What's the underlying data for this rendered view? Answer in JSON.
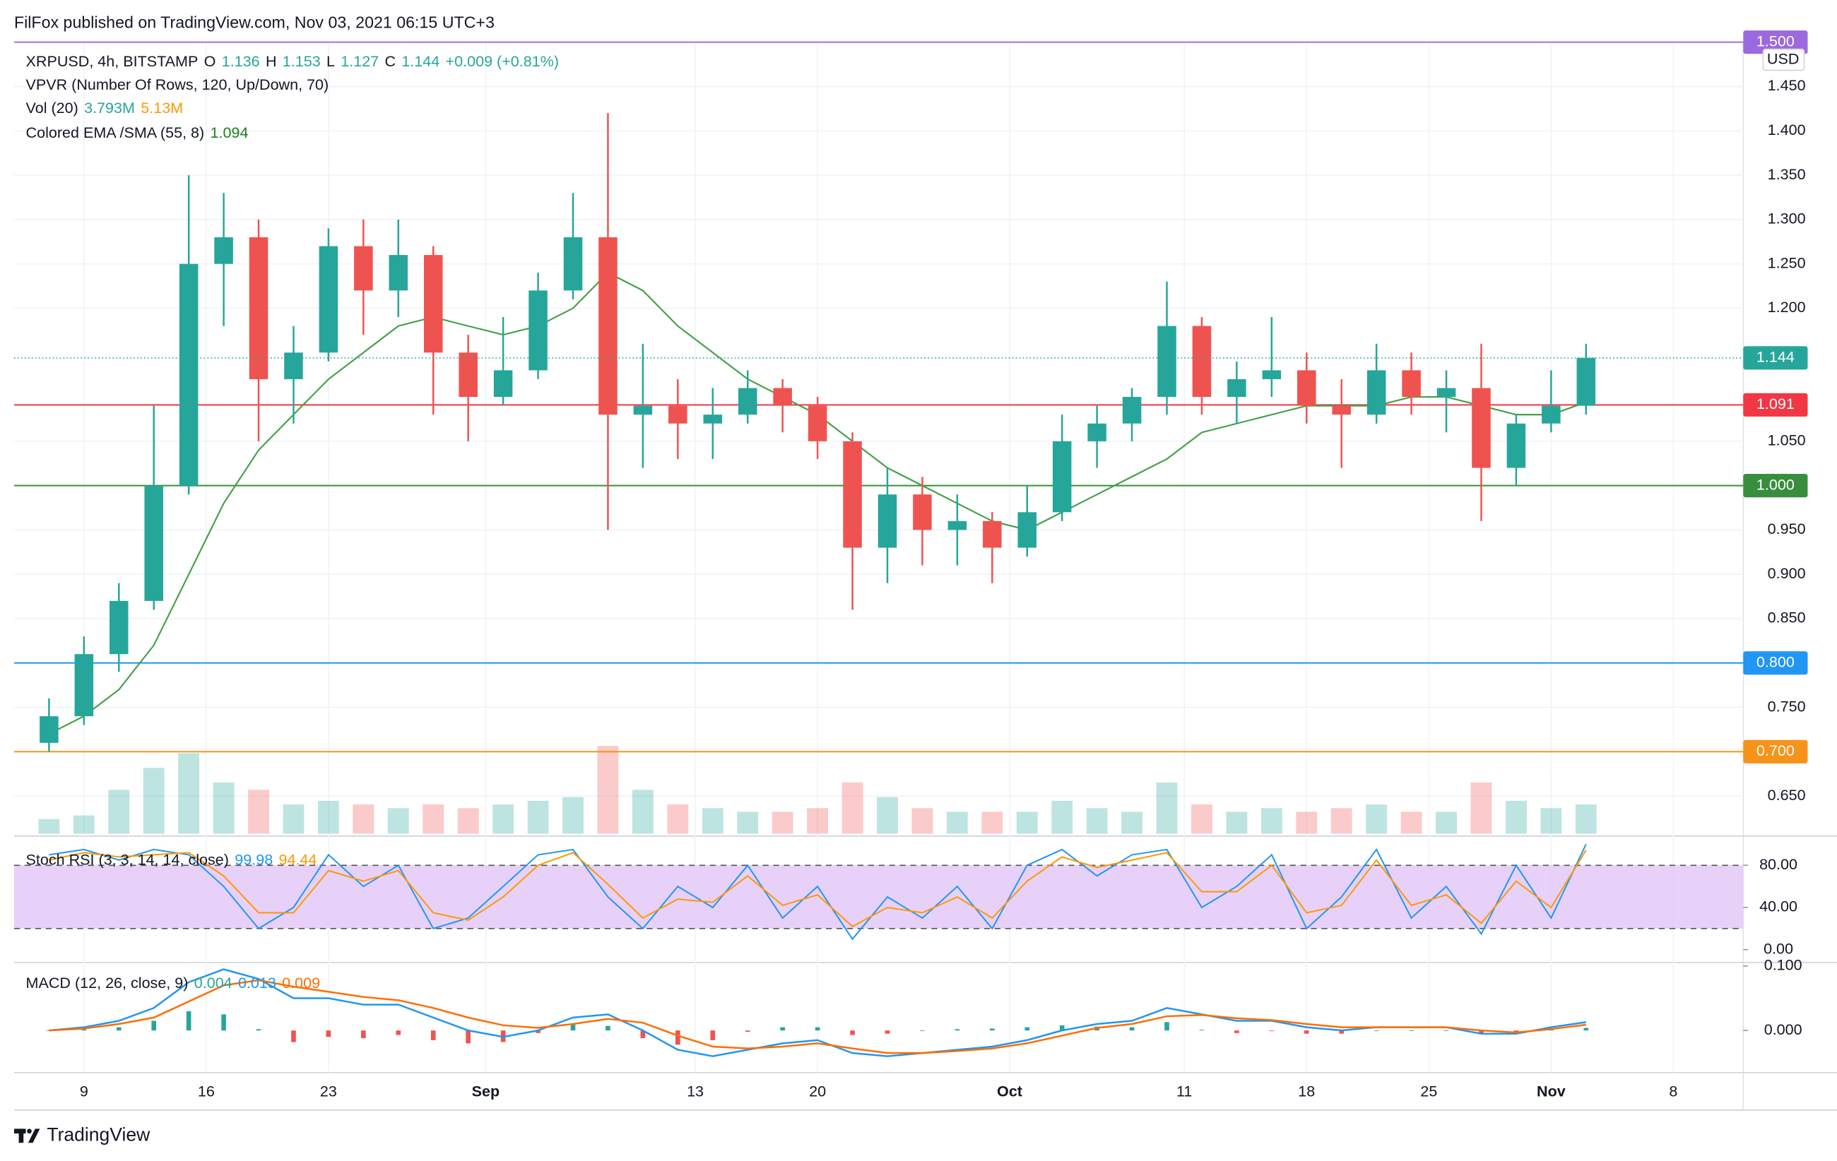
{
  "header": {
    "publisher": "FilFox published on TradingView.com, Nov 03, 2021 06:15 UTC+3",
    "brand": "TradingView"
  },
  "chart_data": {
    "type": "candlestick",
    "title": "XRPUSD, 4h, BITSTAMP",
    "ohlc_legend": [
      {
        "label": "O",
        "value": "1.136"
      },
      {
        "label": "H",
        "value": "1.153"
      },
      {
        "label": "L",
        "value": "1.127"
      }
    ],
    "close_label": "C",
    "change": "+0.009 (+0.81%)",
    "vpvr": "VPVR (Number Of Rows, 120, Up/Down, 70)",
    "currency": "USD",
    "up_color": "#26a69a",
    "down_color": "#ef5350",
    "x": [
      "2021-08-06",
      "2021-08-08",
      "2021-08-10",
      "2021-08-12",
      "2021-08-14",
      "2021-08-16",
      "2021-08-18",
      "2021-08-20",
      "2021-08-22",
      "2021-08-24",
      "2021-08-26",
      "2021-08-28",
      "2021-08-30",
      "2021-09-01",
      "2021-09-03",
      "2021-09-05",
      "2021-09-07",
      "2021-09-09",
      "2021-09-11",
      "2021-09-13",
      "2021-09-15",
      "2021-09-17",
      "2021-09-19",
      "2021-09-21",
      "2021-09-23",
      "2021-09-25",
      "2021-09-27",
      "2021-09-29",
      "2021-10-01",
      "2021-10-03",
      "2021-10-05",
      "2021-10-07",
      "2021-10-09",
      "2021-10-11",
      "2021-10-13",
      "2021-10-15",
      "2021-10-17",
      "2021-10-19",
      "2021-10-21",
      "2021-10-23",
      "2021-10-25",
      "2021-10-27",
      "2021-10-29",
      "2021-10-31",
      "2021-11-02"
    ],
    "open": [
      0.71,
      0.74,
      0.81,
      0.87,
      1.0,
      1.25,
      1.28,
      1.12,
      1.15,
      1.27,
      1.22,
      1.26,
      1.15,
      1.1,
      1.13,
      1.22,
      1.28,
      1.08,
      1.09,
      1.07,
      1.08,
      1.11,
      1.09,
      1.05,
      0.93,
      0.99,
      0.95,
      0.96,
      0.93,
      0.97,
      1.05,
      1.07,
      1.1,
      1.18,
      1.1,
      1.12,
      1.13,
      1.09,
      1.08,
      1.13,
      1.1,
      1.11,
      1.02,
      1.07,
      1.09
    ],
    "high": [
      0.76,
      0.83,
      0.89,
      1.09,
      1.35,
      1.33,
      1.3,
      1.18,
      1.29,
      1.3,
      1.3,
      1.27,
      1.17,
      1.19,
      1.24,
      1.33,
      1.42,
      1.16,
      1.12,
      1.11,
      1.13,
      1.12,
      1.1,
      1.06,
      1.02,
      1.01,
      0.99,
      0.97,
      1.0,
      1.08,
      1.09,
      1.11,
      1.23,
      1.19,
      1.14,
      1.19,
      1.15,
      1.12,
      1.16,
      1.15,
      1.13,
      1.16,
      1.08,
      1.13,
      1.16
    ],
    "low": [
      0.7,
      0.73,
      0.79,
      0.86,
      0.99,
      1.18,
      1.05,
      1.07,
      1.14,
      1.17,
      1.19,
      1.08,
      1.05,
      1.09,
      1.12,
      1.21,
      0.95,
      1.02,
      1.03,
      1.03,
      1.07,
      1.06,
      1.03,
      0.86,
      0.89,
      0.91,
      0.91,
      0.89,
      0.92,
      0.96,
      1.02,
      1.05,
      1.08,
      1.08,
      1.07,
      1.1,
      1.07,
      1.02,
      1.07,
      1.08,
      1.06,
      0.96,
      1.0,
      1.06,
      1.08
    ],
    "close": [
      0.74,
      0.81,
      0.87,
      1.0,
      1.25,
      1.28,
      1.12,
      1.15,
      1.27,
      1.22,
      1.26,
      1.15,
      1.1,
      1.13,
      1.22,
      1.28,
      1.08,
      1.09,
      1.07,
      1.08,
      1.11,
      1.09,
      1.05,
      0.93,
      0.99,
      0.95,
      0.96,
      0.93,
      0.97,
      1.05,
      1.07,
      1.1,
      1.18,
      1.1,
      1.12,
      1.13,
      1.09,
      1.08,
      1.13,
      1.1,
      1.11,
      1.02,
      1.07,
      1.09,
      1.144
    ],
    "xlim": [
      "2021-08-05",
      "2021-11-12"
    ],
    "xticks": [
      {
        "value": "2021-08-09",
        "label": "9"
      },
      {
        "value": "2021-08-16",
        "label": "16"
      },
      {
        "value": "2021-08-23",
        "label": "23"
      },
      {
        "value": "2021-09-01",
        "label": "Sep"
      },
      {
        "value": "2021-09-13",
        "label": "13"
      },
      {
        "value": "2021-09-20",
        "label": "20"
      },
      {
        "value": "2021-10-01",
        "label": "Oct"
      },
      {
        "value": "2021-10-11",
        "label": "11"
      },
      {
        "value": "2021-10-18",
        "label": "18"
      },
      {
        "value": "2021-10-25",
        "label": "25"
      },
      {
        "value": "2021-11-01",
        "label": "Nov"
      },
      {
        "value": "2021-11-08",
        "label": "8"
      }
    ],
    "ylim": [
      0.6075,
      1.5
    ],
    "yticks": [
      {
        "value": 0.65,
        "label": "0.650"
      },
      {
        "value": 0.75,
        "label": "0.750"
      },
      {
        "value": 0.85,
        "label": "0.850"
      },
      {
        "value": 0.9,
        "label": "0.900"
      },
      {
        "value": 0.95,
        "label": "0.950"
      },
      {
        "value": 1.05,
        "label": "1.050"
      },
      {
        "value": 1.2,
        "label": "1.200"
      },
      {
        "value": 1.25,
        "label": "1.250"
      },
      {
        "value": 1.3,
        "label": "1.300"
      },
      {
        "value": 1.35,
        "label": "1.350"
      },
      {
        "value": 1.4,
        "label": "1.400"
      },
      {
        "value": 1.45,
        "label": "1.450"
      }
    ],
    "grid": true,
    "levels": [
      {
        "value": 1.5,
        "label": "1.500",
        "color": "#9c6ade"
      },
      {
        "value": 1.091,
        "label": "1.091",
        "color": "#f23645"
      },
      {
        "value": 1.0,
        "label": "1.000",
        "color": "#388e3c"
      },
      {
        "value": 0.8,
        "label": "0.800",
        "color": "#2196f3"
      },
      {
        "value": 0.7,
        "label": "0.700",
        "color": "#f7931a"
      }
    ],
    "last_color": "#26a69a",
    "ema": {
      "name": "Colored EMA /SMA (55, 8)",
      "color": "#43a047",
      "legend_color": "#1b7f1b",
      "values": [
        0.72,
        0.74,
        0.77,
        0.82,
        0.9,
        0.98,
        1.04,
        1.08,
        1.12,
        1.15,
        1.18,
        1.19,
        1.18,
        1.17,
        1.18,
        1.2,
        1.24,
        1.22,
        1.18,
        1.15,
        1.12,
        1.1,
        1.08,
        1.05,
        1.02,
        1.0,
        0.98,
        0.96,
        0.95,
        0.97,
        0.99,
        1.01,
        1.03,
        1.06,
        1.07,
        1.08,
        1.09,
        1.09,
        1.09,
        1.1,
        1.1,
        1.09,
        1.08,
        1.08,
        1.094
      ]
    },
    "volume": {
      "name": "Vol (20)",
      "legend": [
        {
          "text": "3.793M",
          "color": "#26a69a"
        },
        {
          "text": "5.13M",
          "color": "#ff9800"
        }
      ],
      "values": [
        20,
        25,
        60,
        90,
        110,
        70,
        60,
        40,
        45,
        40,
        35,
        40,
        35,
        40,
        45,
        50,
        120,
        60,
        40,
        35,
        30,
        30,
        35,
        70,
        50,
        35,
        30,
        30,
        30,
        45,
        35,
        30,
        70,
        40,
        30,
        35,
        30,
        35,
        40,
        30,
        30,
        70,
        45,
        35,
        40
      ]
    },
    "stoch_rsi": {
      "type": "line",
      "title": "Stoch RSI (3, 3, 14, 14, close)",
      "ylim": [
        -10,
        105.5
      ],
      "yticks": [
        {
          "value": 0,
          "label": "0.00"
        },
        {
          "value": 40,
          "label": "40.00"
        },
        {
          "value": 80,
          "label": "80.00"
        }
      ],
      "bands": [
        20,
        80
      ],
      "band_color": "#e1c6f7",
      "series": [
        {
          "name": "K",
          "color": "#2196f3",
          "values": [
            90,
            95,
            85,
            95,
            90,
            60,
            20,
            40,
            90,
            60,
            80,
            20,
            30,
            60,
            90,
            95,
            50,
            20,
            60,
            40,
            80,
            30,
            60,
            10,
            50,
            30,
            60,
            20,
            80,
            95,
            70,
            90,
            95,
            40,
            60,
            90,
            20,
            50,
            95,
            30,
            60,
            15,
            80,
            30,
            99.98
          ]
        },
        {
          "name": "D",
          "color": "#ff9800",
          "values": [
            85,
            92,
            88,
            90,
            92,
            70,
            35,
            35,
            75,
            65,
            75,
            35,
            28,
            50,
            80,
            92,
            62,
            30,
            48,
            45,
            70,
            42,
            52,
            22,
            40,
            35,
            50,
            30,
            65,
            88,
            78,
            85,
            92,
            55,
            55,
            80,
            35,
            42,
            85,
            42,
            52,
            25,
            65,
            40,
            94.44
          ]
        }
      ]
    },
    "macd": {
      "type": "line",
      "title": "MACD (12, 26, close, 9)",
      "ylim": [
        -0.0636,
        0.1055
      ],
      "yticks": [
        {
          "value": 0,
          "label": "0.000"
        },
        {
          "value": 0.1,
          "label": "0.100"
        }
      ],
      "histogram": {
        "up_color": "#26a69a",
        "down_color": "#ef5350",
        "values": [
          0,
          0.002,
          0.005,
          0.015,
          0.03,
          0.025,
          0.002,
          -0.018,
          -0.01,
          -0.012,
          -0.007,
          -0.015,
          -0.02,
          -0.018,
          -0.004,
          0.01,
          0.007,
          -0.012,
          -0.022,
          -0.015,
          -0.002,
          0.005,
          0.005,
          -0.007,
          -0.005,
          0,
          0.002,
          0.003,
          0.005,
          0.008,
          0.006,
          0.005,
          0.013,
          0.001,
          -0.004,
          -0.001,
          -0.005,
          -0.005,
          0,
          0,
          0,
          -0.005,
          -0.002,
          0.003,
          0.004
        ]
      },
      "series": [
        {
          "name": "MACD",
          "color": "#2196f3",
          "values": [
            0,
            0.005,
            0.015,
            0.035,
            0.075,
            0.095,
            0.08,
            0.05,
            0.05,
            0.04,
            0.04,
            0.02,
            0,
            -0.01,
            0,
            0.02,
            0.025,
            0,
            -0.03,
            -0.04,
            -0.03,
            -0.02,
            -0.015,
            -0.035,
            -0.04,
            -0.035,
            -0.03,
            -0.025,
            -0.015,
            0,
            0.01,
            0.015,
            0.035,
            0.025,
            0.015,
            0.015,
            0.005,
            0,
            0.005,
            0.005,
            0.005,
            -0.005,
            -0.005,
            0.005,
            0.013
          ]
        },
        {
          "name": "Signal",
          "color": "#ff6d00",
          "values": [
            0,
            0.003,
            0.01,
            0.02,
            0.045,
            0.07,
            0.078,
            0.068,
            0.06,
            0.052,
            0.047,
            0.035,
            0.02,
            0.008,
            0.004,
            0.01,
            0.018,
            0.012,
            -0.008,
            -0.025,
            -0.028,
            -0.025,
            -0.02,
            -0.028,
            -0.035,
            -0.035,
            -0.032,
            -0.028,
            -0.02,
            -0.008,
            0.004,
            0.01,
            0.022,
            0.024,
            0.019,
            0.016,
            0.01,
            0.005,
            0.005,
            0.005,
            0.005,
            0,
            -0.003,
            0.002,
            0.009
          ]
        }
      ]
    }
  }
}
